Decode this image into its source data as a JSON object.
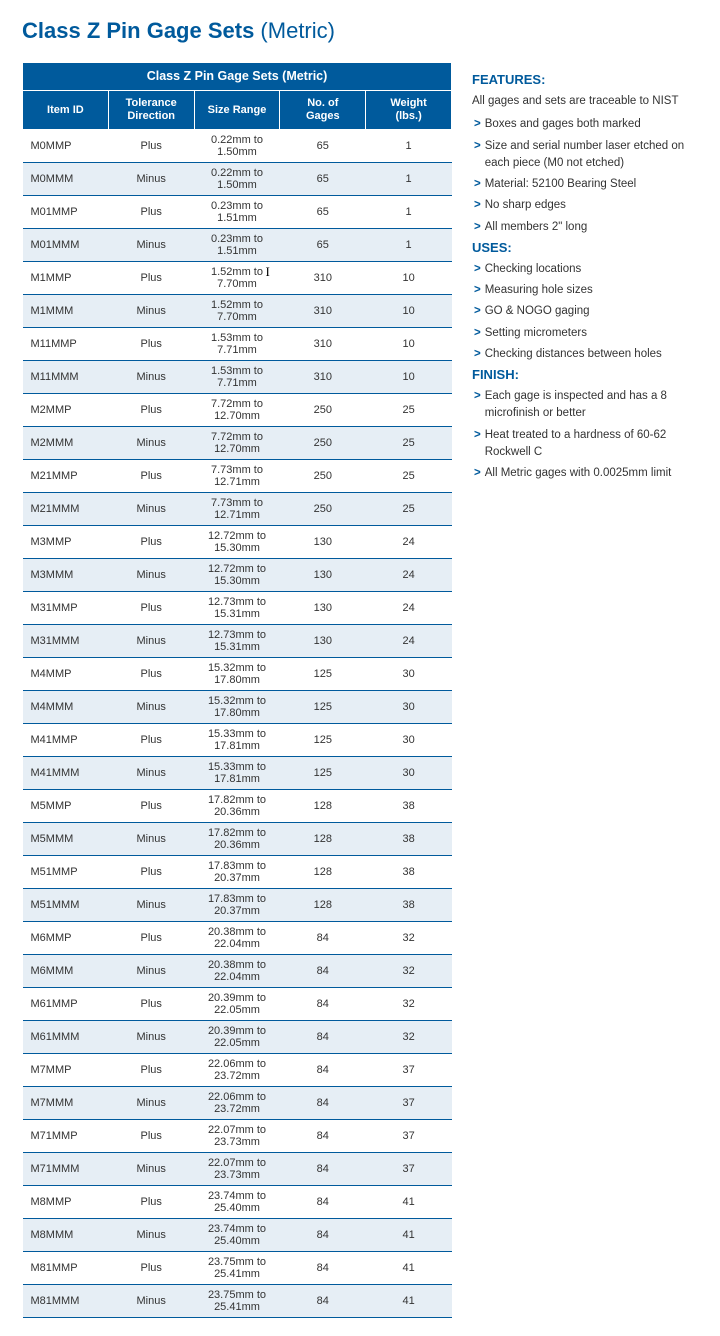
{
  "title": {
    "bold": "Class Z Pin Gage Sets",
    "light": " (Metric)"
  },
  "table": {
    "title": "Class Z Pin Gage Sets (Metric)",
    "columns": [
      "Item ID",
      "Tolerance Direction",
      "Size Range",
      "No. of Gages",
      "Weight (lbs.)"
    ],
    "col_widths": [
      "76px",
      "70px",
      "150px",
      "60px",
      "62px"
    ],
    "rows": [
      [
        "M0MMP",
        "Plus",
        "0.22mm to 1.50mm",
        "65",
        "1"
      ],
      [
        "M0MMM",
        "Minus",
        "0.22mm to 1.50mm",
        "65",
        "1"
      ],
      [
        "M01MMP",
        "Plus",
        "0.23mm to 1.51mm",
        "65",
        "1"
      ],
      [
        "M01MMM",
        "Minus",
        "0.23mm to 1.51mm",
        "65",
        "1"
      ],
      [
        "M1MMP",
        "Plus",
        "1.52mm to 7.70mm",
        "310",
        "10"
      ],
      [
        "M1MMM",
        "Minus",
        "1.52mm to 7.70mm",
        "310",
        "10"
      ],
      [
        "M11MMP",
        "Plus",
        "1.53mm to 7.71mm",
        "310",
        "10"
      ],
      [
        "M11MMM",
        "Minus",
        "1.53mm to 7.71mm",
        "310",
        "10"
      ],
      [
        "M2MMP",
        "Plus",
        "7.72mm to 12.70mm",
        "250",
        "25"
      ],
      [
        "M2MMM",
        "Minus",
        "7.72mm to 12.70mm",
        "250",
        "25"
      ],
      [
        "M21MMP",
        "Plus",
        "7.73mm to 12.71mm",
        "250",
        "25"
      ],
      [
        "M21MMM",
        "Minus",
        "7.73mm to 12.71mm",
        "250",
        "25"
      ],
      [
        "M3MMP",
        "Plus",
        "12.72mm to 15.30mm",
        "130",
        "24"
      ],
      [
        "M3MMM",
        "Minus",
        "12.72mm to 15.30mm",
        "130",
        "24"
      ],
      [
        "M31MMP",
        "Plus",
        "12.73mm to 15.31mm",
        "130",
        "24"
      ],
      [
        "M31MMM",
        "Minus",
        "12.73mm to 15.31mm",
        "130",
        "24"
      ],
      [
        "M4MMP",
        "Plus",
        "15.32mm to 17.80mm",
        "125",
        "30"
      ],
      [
        "M4MMM",
        "Minus",
        "15.32mm to 17.80mm",
        "125",
        "30"
      ],
      [
        "M41MMP",
        "Plus",
        "15.33mm to 17.81mm",
        "125",
        "30"
      ],
      [
        "M41MMM",
        "Minus",
        "15.33mm to 17.81mm",
        "125",
        "30"
      ],
      [
        "M5MMP",
        "Plus",
        "17.82mm to 20.36mm",
        "128",
        "38"
      ],
      [
        "M5MMM",
        "Minus",
        "17.82mm to 20.36mm",
        "128",
        "38"
      ],
      [
        "M51MMP",
        "Plus",
        "17.83mm to 20.37mm",
        "128",
        "38"
      ],
      [
        "M51MMM",
        "Minus",
        "17.83mm to 20.37mm",
        "128",
        "38"
      ],
      [
        "M6MMP",
        "Plus",
        "20.38mm to 22.04mm",
        "84",
        "32"
      ],
      [
        "M6MMM",
        "Minus",
        "20.38mm to 22.04mm",
        "84",
        "32"
      ],
      [
        "M61MMP",
        "Plus",
        "20.39mm to 22.05mm",
        "84",
        "32"
      ],
      [
        "M61MMM",
        "Minus",
        "20.39mm to 22.05mm",
        "84",
        "32"
      ],
      [
        "M7MMP",
        "Plus",
        "22.06mm to 23.72mm",
        "84",
        "37"
      ],
      [
        "M7MMM",
        "Minus",
        "22.06mm to 23.72mm",
        "84",
        "37"
      ],
      [
        "M71MMP",
        "Plus",
        "22.07mm to 23.73mm",
        "84",
        "37"
      ],
      [
        "M71MMM",
        "Minus",
        "22.07mm to 23.73mm",
        "84",
        "37"
      ],
      [
        "M8MMP",
        "Plus",
        "23.74mm to 25.40mm",
        "84",
        "41"
      ],
      [
        "M8MMM",
        "Minus",
        "23.74mm to 25.40mm",
        "84",
        "41"
      ],
      [
        "M81MMP",
        "Plus",
        "23.75mm to 25.41mm",
        "84",
        "41"
      ],
      [
        "M81MMM",
        "Minus",
        "23.75mm to 25.41mm",
        "84",
        "41"
      ]
    ],
    "cursor_row": 4,
    "cursor_col": 2
  },
  "sections": [
    {
      "head": "FEATURES:",
      "intro": "All gages and sets are traceable to NIST",
      "items": [
        "Boxes and gages both marked",
        "Size and serial number laser etched on each piece (M0 not etched)",
        "Material: 52100 Bearing Steel",
        "No sharp edges",
        "All members 2\" long"
      ]
    },
    {
      "head": "USES:",
      "items": [
        "Checking locations",
        "Measuring hole sizes",
        "GO & NOGO gaging",
        "Setting micrometers",
        "Checking distances between holes"
      ]
    },
    {
      "head": "FINISH:",
      "items": [
        "Each gage is inspected and has a 8 microfinish or better",
        "Heat treated to a hardness of 60-62 Rockwell C",
        "All Metric gages with 0.0025mm limit"
      ]
    }
  ],
  "colors": {
    "brand": "#005a9c",
    "alt_row": "#e6eef5",
    "text": "#333333",
    "bg": "#ffffff"
  }
}
